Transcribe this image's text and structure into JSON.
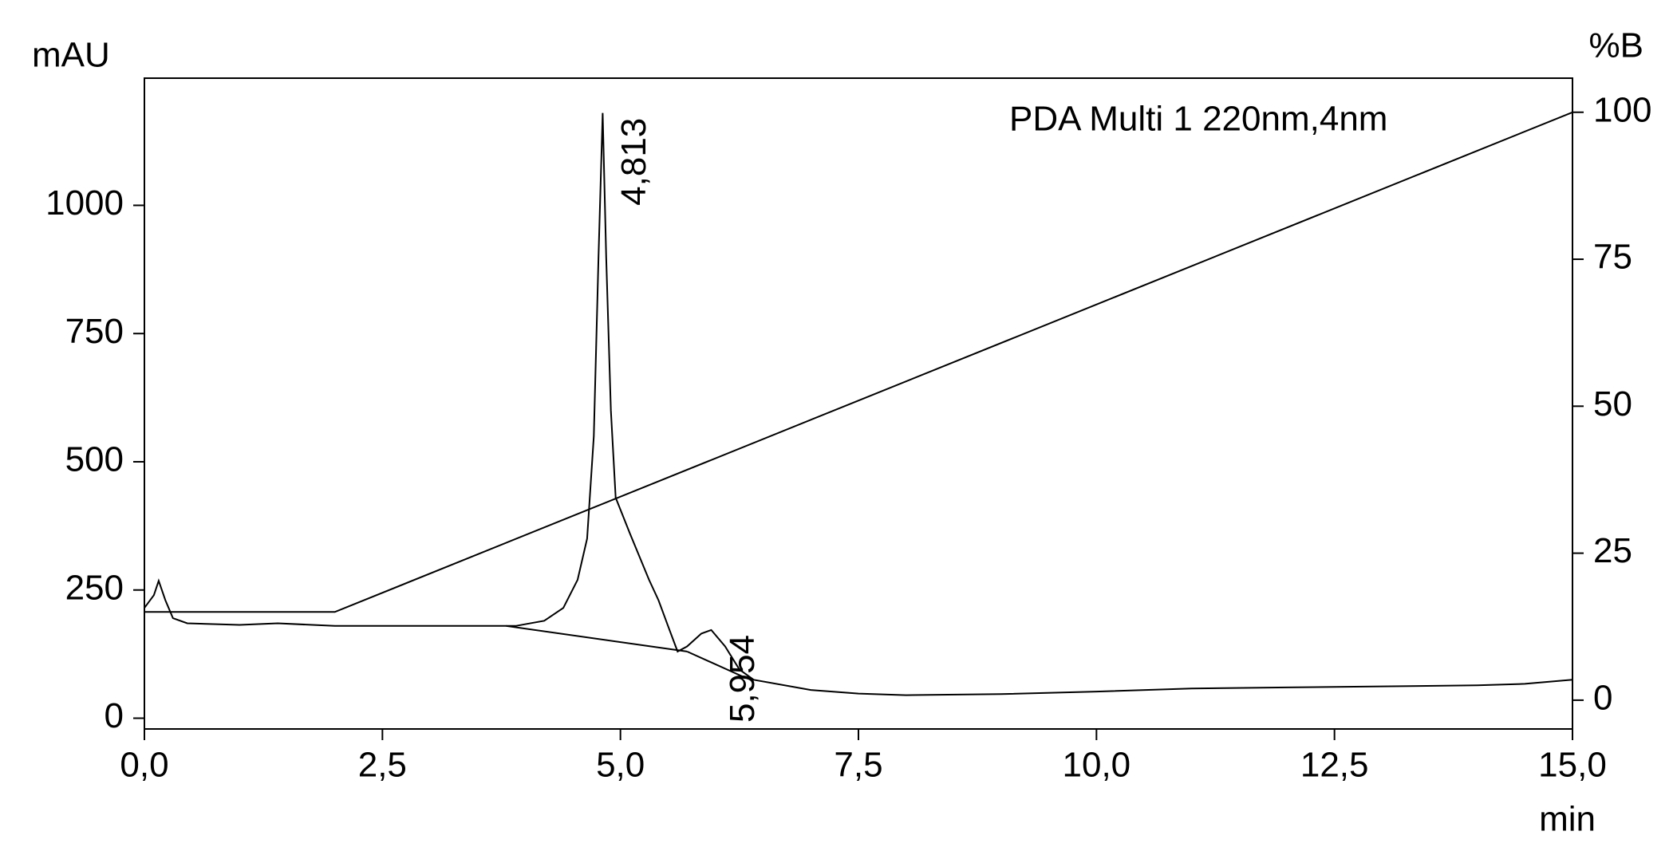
{
  "chart_data": {
    "type": "line",
    "y_label": "mAU",
    "y2_label": "%B",
    "x_label": "min",
    "annotations": [
      {
        "text": "PDA Multi 1 220nm,4nm"
      },
      {
        "text": "4,813",
        "x": 4.813,
        "y": 1180
      },
      {
        "text": "5,954",
        "x": 5.954,
        "y": 172
      }
    ],
    "xlim": [
      0,
      15
    ],
    "xticks": [
      {
        "value": 0,
        "label": "0,0"
      },
      {
        "value": 2.5,
        "label": "2,5"
      },
      {
        "value": 5,
        "label": "5,0"
      },
      {
        "value": 7.5,
        "label": "7,5"
      },
      {
        "value": 10,
        "label": "10,0"
      },
      {
        "value": 12.5,
        "label": "12,5"
      },
      {
        "value": 15,
        "label": "15,0"
      }
    ],
    "ylim": [
      -21,
      1248
    ],
    "yticks": [
      0,
      250,
      500,
      750,
      1000
    ],
    "y2lim": [
      -4.9,
      105.8
    ],
    "y2ticks": [
      0,
      25,
      50,
      75,
      100
    ],
    "series": [
      {
        "color": "#000000",
        "x": [
          0,
          0.1,
          0.15,
          0.22,
          0.3,
          0.45,
          1.0,
          1.4,
          2.0,
          3.0,
          3.5,
          3.9,
          4.2,
          4.4,
          4.55,
          4.65,
          4.72,
          4.77,
          4.813,
          4.85,
          4.9,
          4.95,
          5.1,
          5.3,
          5.4,
          5.5,
          5.6,
          5.7,
          5.85,
          5.954,
          6.1,
          6.25,
          6.4,
          7.0,
          7.5,
          8.0,
          9.0,
          10.0,
          11.0,
          12.0,
          13.0,
          14.0,
          14.5,
          15.0
        ],
        "values": [
          215,
          240,
          268,
          230,
          195,
          185,
          182,
          185,
          180,
          180,
          180,
          180,
          190,
          215,
          270,
          350,
          550,
          900,
          1180,
          900,
          600,
          430,
          360,
          270,
          230,
          180,
          130,
          140,
          165,
          172,
          140,
          95,
          75,
          55,
          48,
          45,
          47,
          52,
          58,
          60,
          62,
          64,
          67,
          75
        ]
      },
      {
        "color": "#000000",
        "x": [
          3.8,
          5.7
        ],
        "values": [
          180,
          130
        ]
      },
      {
        "color": "#000000",
        "x": [
          5.7,
          6.3
        ],
        "values": [
          130,
          80
        ]
      },
      {
        "color": "#000000",
        "axis": "y2",
        "x": [
          0,
          2,
          15
        ],
        "values": [
          15,
          15,
          100
        ]
      }
    ]
  }
}
